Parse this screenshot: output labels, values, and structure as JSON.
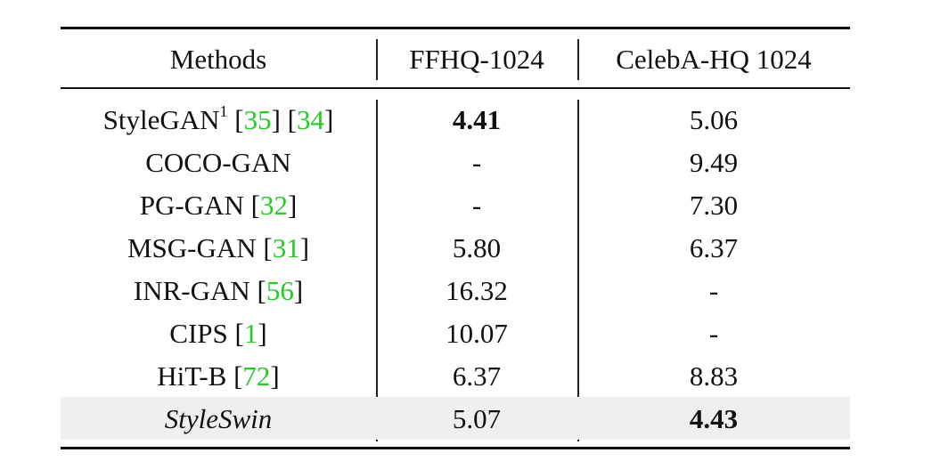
{
  "table": {
    "headers": [
      "Methods",
      "FFHQ-1024",
      "CelebA-HQ 1024"
    ],
    "rows": [
      {
        "method": "StyleGAN",
        "sup": "1",
        "open1": " [",
        "cite1": "35",
        "mid": "] [",
        "cite2": "34",
        "close": "]",
        "ffhq": "4.41",
        "celeba": "5.06",
        "ffhq_bold": true
      },
      {
        "method": "COCO-GAN",
        "ffhq": "-",
        "celeba": "9.49"
      },
      {
        "method": "PG-GAN",
        "open1": " [",
        "cite1": "32",
        "close": "]",
        "ffhq": "-",
        "celeba": "7.30"
      },
      {
        "method": "MSG-GAN",
        "open1": " [",
        "cite1": "31",
        "close": "]",
        "ffhq": "5.80",
        "celeba": "6.37"
      },
      {
        "method": "INR-GAN",
        "open1": " [",
        "cite1": "56",
        "close": "]",
        "ffhq": "16.32",
        "celeba": "-"
      },
      {
        "method": "CIPS",
        "open1": " [",
        "cite1": "1",
        "close": "]",
        "ffhq": "10.07",
        "celeba": "-"
      },
      {
        "method": "HiT-B",
        "open1": " [",
        "cite1": "72",
        "close": "]",
        "ffhq": "6.37",
        "celeba": "8.83"
      },
      {
        "method": "StyleSwin",
        "ffhq": "5.07",
        "celeba": "4.43",
        "celeba_bold": true,
        "italic": true,
        "highlight": true
      }
    ]
  }
}
